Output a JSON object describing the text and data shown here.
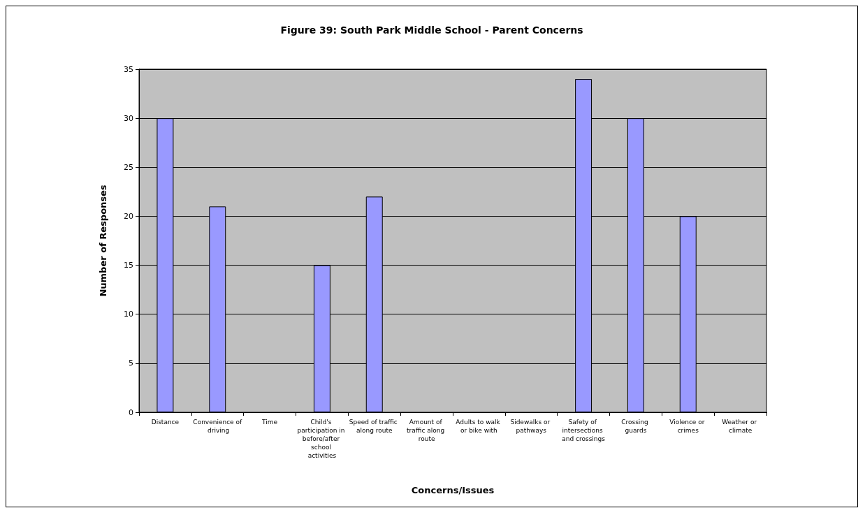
{
  "chart_data": {
    "type": "bar",
    "title": "Figure 39: South Park Middle School - Parent Concerns",
    "xlabel": "Concerns/Issues",
    "ylabel": "Number of Responses",
    "categories": [
      "Distance",
      "Convenience of driving",
      "Time",
      "Child's participation in before/after school activities",
      "Speed of traffic along route",
      "Amount of traffic along route",
      "Adults to walk or bike with",
      "Sidewalks or pathways",
      "Safety of intersections and crossings",
      "Crossing guards",
      "Violence or crimes",
      "Weather or climate"
    ],
    "values": [
      30,
      21,
      0,
      15,
      22,
      0,
      0,
      0,
      34,
      30,
      20,
      0
    ],
    "color": "#9999ff",
    "ylim": [
      0,
      35
    ],
    "yticks": [
      0,
      5,
      10,
      15,
      20,
      25,
      30,
      35
    ],
    "grid": "y"
  }
}
